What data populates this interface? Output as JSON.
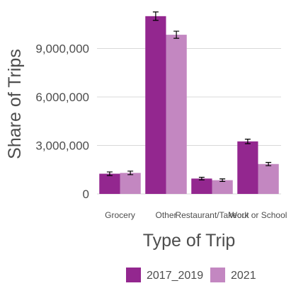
{
  "chart_data": {
    "type": "bar",
    "title": "",
    "xlabel": "Type of Trip",
    "ylabel": "Share of Trips",
    "categories": [
      "Grocery",
      "Other",
      "Restaurant/Takeout",
      "Work or School"
    ],
    "series": [
      {
        "name": "2017_2019",
        "color": "#93278f",
        "values": [
          1250000,
          11000000,
          950000,
          3250000
        ],
        "error": [
          110000,
          260000,
          80000,
          140000
        ]
      },
      {
        "name": "2021",
        "color": "#c387c1",
        "values": [
          1300000,
          9850000,
          850000,
          1850000
        ],
        "error": [
          110000,
          220000,
          80000,
          100000
        ]
      }
    ],
    "yticks": [
      0,
      3000000,
      6000000,
      9000000
    ],
    "ytick_labels": [
      "0",
      "3,000,000",
      "6,000,000",
      "9,000,000"
    ],
    "ylim": [
      0,
      11650000
    ],
    "grid": true,
    "legend_position": "bottom"
  }
}
